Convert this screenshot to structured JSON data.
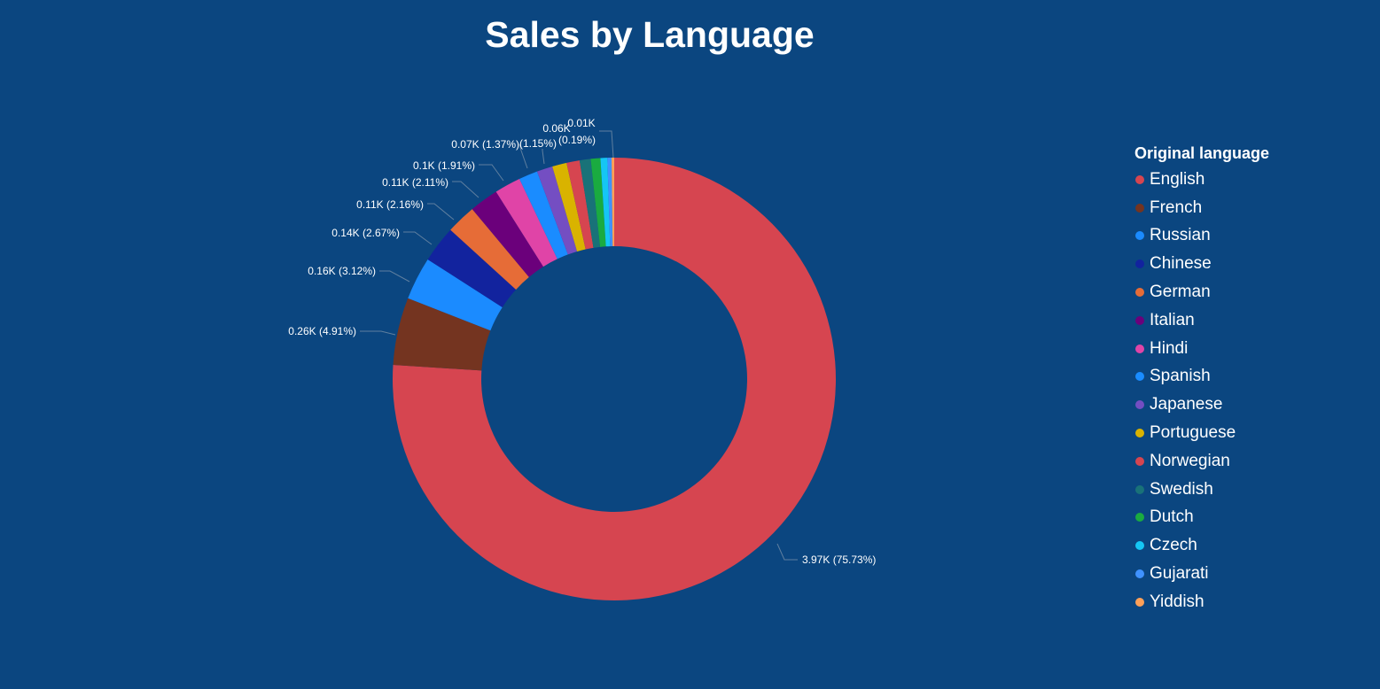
{
  "chart_data": {
    "type": "pie",
    "style": "donut",
    "title": "Sales by Language",
    "legend_title": "Original language",
    "legend_position": "right",
    "slices": [
      {
        "name": "English",
        "value_label": "3.97K",
        "percent": 75.73,
        "color": "#d64550",
        "label": "3.97K (75.73%)"
      },
      {
        "name": "French",
        "value_label": "0.26K",
        "percent": 4.91,
        "color": "#743420",
        "label": "0.26K (4.91%)"
      },
      {
        "name": "Russian",
        "value_label": "0.16K",
        "percent": 3.12,
        "color": "#1b8bff",
        "label": "0.16K (3.12%)"
      },
      {
        "name": "Chinese",
        "value_label": "0.14K",
        "percent": 2.67,
        "color": "#12239e",
        "label": "0.14K (2.67%)"
      },
      {
        "name": "German",
        "value_label": "0.11K",
        "percent": 2.16,
        "color": "#e66c37",
        "label": "0.11K (2.16%)"
      },
      {
        "name": "Italian",
        "value_label": "0.11K",
        "percent": 2.11,
        "color": "#6b007b",
        "label": "0.11K (2.11%)"
      },
      {
        "name": "Hindi",
        "value_label": "0.1K",
        "percent": 1.91,
        "color": "#e044a7",
        "label": "0.1K (1.91%)"
      },
      {
        "name": "Spanish",
        "value_label": "0.07K",
        "percent": 1.37,
        "color": "#1a8cff",
        "label": "0.07K (1.37%)"
      },
      {
        "name": "Japanese",
        "value_label": "0.06K",
        "percent": 1.15,
        "color": "#744ec2",
        "label": "0.06K (1.15%)"
      },
      {
        "name": "Portuguese",
        "value_label": "",
        "percent": 1.05,
        "color": "#d9b300",
        "label": ""
      },
      {
        "name": "Norwegian",
        "value_label": "",
        "percent": 0.95,
        "color": "#d64550",
        "label": ""
      },
      {
        "name": "Swedish",
        "value_label": "",
        "percent": 0.8,
        "color": "#197278",
        "label": ""
      },
      {
        "name": "Dutch",
        "value_label": "",
        "percent": 0.7,
        "color": "#1aab40",
        "label": ""
      },
      {
        "name": "Czech",
        "value_label": "",
        "percent": 0.5,
        "color": "#15c6f4",
        "label": ""
      },
      {
        "name": "Gujarati",
        "value_label": "",
        "percent": 0.3,
        "color": "#4092ff",
        "label": ""
      },
      {
        "name": "Yiddish",
        "value_label": "0.01K",
        "percent": 0.19,
        "color": "#ffa058",
        "label": "0.01K (0.19%)"
      }
    ]
  }
}
